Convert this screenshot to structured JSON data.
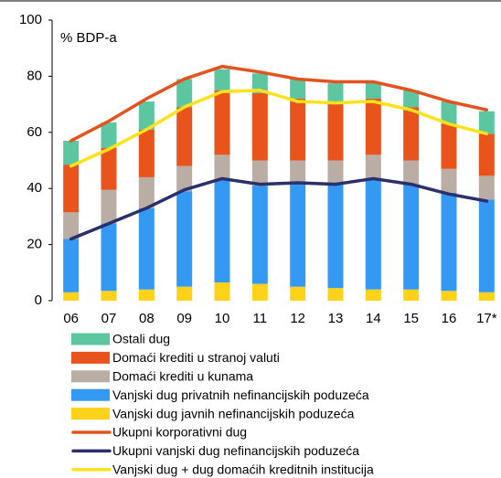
{
  "chart_data": {
    "type": "bar",
    "stacked": true,
    "y_label": "% BDP-a",
    "categories": [
      "06",
      "07",
      "08",
      "09",
      "10",
      "11",
      "12",
      "13",
      "14",
      "15",
      "16",
      "17*"
    ],
    "ylim": [
      0,
      100
    ],
    "yticks": [
      0,
      20,
      40,
      60,
      80,
      100
    ],
    "grid": false,
    "series": [
      {
        "name": "Ostali dug",
        "kind": "bar",
        "color": "#5cc6a0",
        "values": [
          8.5,
          9,
          10,
          10,
          7.5,
          7,
          7,
          6.5,
          6,
          6,
          8,
          8
        ]
      },
      {
        "name": "Domaći krediti u stranoj valuti",
        "kind": "bar",
        "color": "#e8541c",
        "values": [
          17,
          15,
          17,
          21,
          23,
          24,
          22,
          21,
          20,
          19,
          16,
          15
        ]
      },
      {
        "name": "Domaći krediti u kunama",
        "kind": "bar",
        "color": "#b9ada4",
        "values": [
          9.5,
          12,
          11,
          9,
          9,
          9,
          8,
          8.5,
          8.5,
          8.5,
          8.5,
          8.5
        ]
      },
      {
        "name": "Vanjski dug privatnih nefinancijskih poduzeća",
        "kind": "bar",
        "color": "#3399f3",
        "values": [
          19,
          24,
          29,
          34,
          36.5,
          35,
          37,
          37,
          39.5,
          37.5,
          35,
          33
        ]
      },
      {
        "name": "Vanjski dug javnih nefinancijskih poduzeća",
        "kind": "bar",
        "color": "#ffd21a",
        "values": [
          3,
          3.5,
          4,
          5,
          6.5,
          6,
          5,
          4.5,
          4,
          4,
          3.5,
          3
        ]
      },
      {
        "name": "Ukupni korporativni dug",
        "kind": "line",
        "color": "#e2531f",
        "values": [
          57,
          64,
          72,
          79,
          83.5,
          81.5,
          79,
          78,
          78,
          75,
          71,
          68
        ]
      },
      {
        "name": "Ukupni vanjski dug nefinancijskih poduzeća",
        "kind": "line",
        "color": "#2b2f6b",
        "values": [
          22,
          27.5,
          33,
          39.5,
          43.5,
          41.5,
          42,
          41.5,
          43.5,
          41.5,
          38,
          35.5
        ]
      },
      {
        "name": "Vanjski dug + dug domaćih kreditnih institucija",
        "kind": "line",
        "color": "#ffe21a",
        "values": [
          48,
          54,
          61,
          69,
          74.5,
          75,
          71,
          70.5,
          71,
          68,
          63,
          59.5
        ]
      }
    ]
  }
}
